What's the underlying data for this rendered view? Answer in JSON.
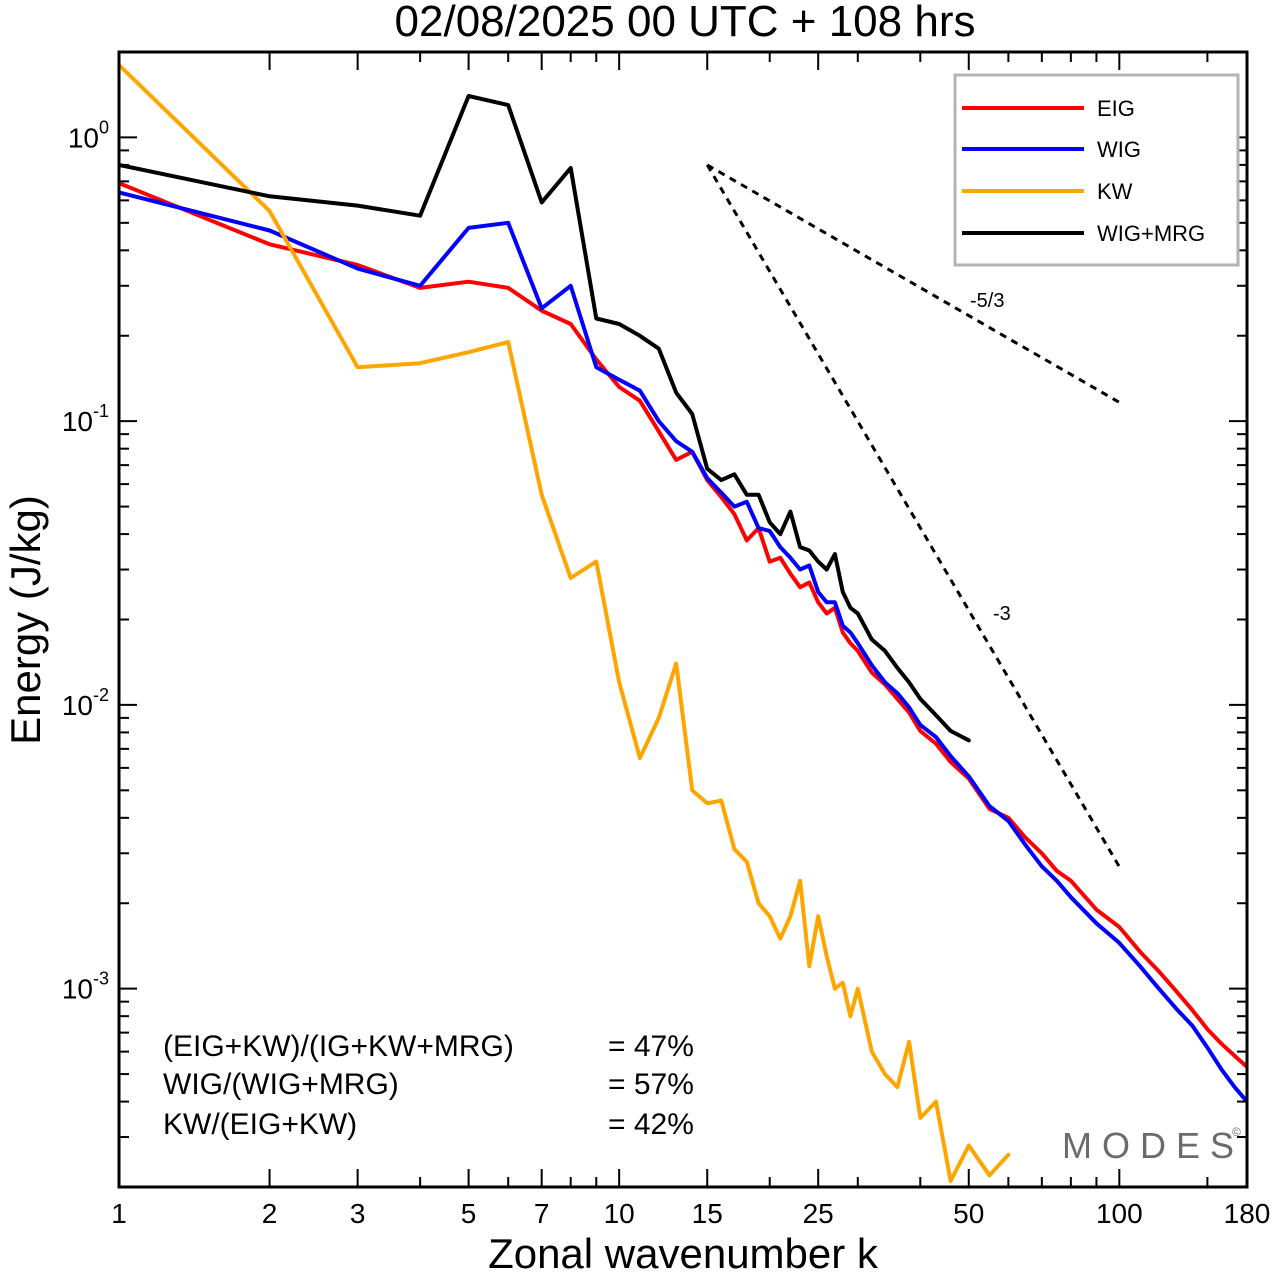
{
  "chart_data": {
    "type": "line",
    "title": "02/08/2025  00 UTC  + 108 hrs",
    "xlabel": "Zonal wavenumber k",
    "ylabel": "Energy (J/kg)",
    "xscale": "log",
    "yscale": "log",
    "xlim": [
      1,
      180
    ],
    "ylim": [
      0.0002,
      2.0
    ],
    "xticks": [
      1,
      2,
      3,
      5,
      7,
      10,
      15,
      25,
      50,
      100,
      180
    ],
    "yticks": [
      {
        "value": 0.001,
        "base": "10",
        "exp": "-3"
      },
      {
        "value": 0.01,
        "base": "10",
        "exp": "-2"
      },
      {
        "value": 0.1,
        "base": "10",
        "exp": "-1"
      },
      {
        "value": 1.0,
        "base": "10",
        "exp": "0"
      }
    ],
    "legend": {
      "position": "top-right"
    },
    "series": [
      {
        "name": "EIG",
        "color": "#ff0000",
        "x": [
          1,
          2,
          3,
          4,
          5,
          6,
          7,
          8,
          9,
          10,
          11,
          12,
          13,
          14,
          15,
          16,
          17,
          18,
          19,
          20,
          21,
          22,
          23,
          24,
          25,
          26,
          27,
          28,
          29,
          30,
          32,
          34,
          36,
          38,
          40,
          43,
          46,
          50,
          55,
          60,
          65,
          70,
          75,
          80,
          90,
          100,
          110,
          120,
          130,
          140,
          150,
          160,
          170,
          180
        ],
        "y": [
          0.69,
          0.42,
          0.355,
          0.295,
          0.31,
          0.295,
          0.245,
          0.22,
          0.165,
          0.132,
          0.118,
          0.092,
          0.073,
          0.078,
          0.062,
          0.054,
          0.047,
          0.038,
          0.042,
          0.032,
          0.033,
          0.029,
          0.026,
          0.027,
          0.023,
          0.021,
          0.022,
          0.018,
          0.0165,
          0.0155,
          0.013,
          0.0118,
          0.0105,
          0.0094,
          0.0081,
          0.0073,
          0.0063,
          0.0055,
          0.0043,
          0.004,
          0.0034,
          0.003,
          0.0026,
          0.0024,
          0.0019,
          0.00165,
          0.00135,
          0.00115,
          0.00098,
          0.00084,
          0.00072,
          0.00064,
          0.00058,
          0.00053
        ]
      },
      {
        "name": "WIG",
        "color": "#0000ff",
        "x": [
          1,
          2,
          3,
          4,
          5,
          6,
          7,
          8,
          9,
          10,
          11,
          12,
          13,
          14,
          15,
          16,
          17,
          18,
          19,
          20,
          21,
          22,
          23,
          24,
          25,
          26,
          27,
          28,
          29,
          30,
          32,
          34,
          36,
          38,
          40,
          43,
          46,
          50,
          55,
          60,
          65,
          70,
          75,
          80,
          90,
          100,
          110,
          120,
          130,
          140,
          150,
          160,
          170,
          180
        ],
        "y": [
          0.64,
          0.47,
          0.345,
          0.3,
          0.48,
          0.5,
          0.25,
          0.3,
          0.155,
          0.14,
          0.128,
          0.1,
          0.085,
          0.078,
          0.063,
          0.056,
          0.05,
          0.052,
          0.042,
          0.041,
          0.036,
          0.033,
          0.03,
          0.031,
          0.025,
          0.023,
          0.023,
          0.019,
          0.018,
          0.0165,
          0.0138,
          0.012,
          0.011,
          0.0098,
          0.0085,
          0.0077,
          0.0066,
          0.0056,
          0.0044,
          0.0039,
          0.0032,
          0.0027,
          0.0024,
          0.0021,
          0.0017,
          0.00145,
          0.0012,
          0.001,
          0.00085,
          0.00074,
          0.00062,
          0.00052,
          0.00045,
          0.0004
        ]
      },
      {
        "name": "KW",
        "color": "#ffa500",
        "x": [
          1,
          2,
          3,
          4,
          5,
          6,
          7,
          8,
          9,
          10,
          11,
          12,
          13,
          14,
          15,
          16,
          17,
          18,
          19,
          20,
          21,
          22,
          23,
          24,
          25,
          26,
          27,
          28,
          29,
          30,
          32,
          34,
          36,
          38,
          40,
          43,
          46,
          50,
          55,
          60
        ],
        "y": [
          1.8,
          0.55,
          0.155,
          0.16,
          0.175,
          0.19,
          0.055,
          0.028,
          0.032,
          0.012,
          0.0065,
          0.009,
          0.014,
          0.005,
          0.0045,
          0.0046,
          0.0031,
          0.0028,
          0.002,
          0.0018,
          0.0015,
          0.0018,
          0.0024,
          0.0012,
          0.0018,
          0.0013,
          0.001,
          0.00105,
          0.0008,
          0.001,
          0.0006,
          0.0005,
          0.00045,
          0.00065,
          0.00035,
          0.0004,
          0.00021,
          0.00028,
          0.00022,
          0.00026
        ]
      },
      {
        "name": "WIG+MRG",
        "color": "#000000",
        "x": [
          1,
          2,
          3,
          4,
          5,
          6,
          7,
          8,
          9,
          10,
          11,
          12,
          13,
          14,
          15,
          16,
          17,
          18,
          19,
          20,
          21,
          22,
          23,
          24,
          25,
          26,
          27,
          28,
          29,
          30,
          32,
          34,
          36,
          38,
          40,
          43,
          46,
          50
        ],
        "y": [
          0.8,
          0.62,
          0.575,
          0.53,
          1.4,
          1.3,
          0.59,
          0.78,
          0.23,
          0.22,
          0.2,
          0.18,
          0.126,
          0.106,
          0.068,
          0.062,
          0.065,
          0.055,
          0.055,
          0.044,
          0.04,
          0.048,
          0.036,
          0.035,
          0.032,
          0.03,
          0.034,
          0.025,
          0.022,
          0.021,
          0.017,
          0.0155,
          0.0135,
          0.012,
          0.0105,
          0.0092,
          0.0081,
          0.0075
        ]
      }
    ],
    "reference_lines": [
      {
        "label": "-5/3",
        "x": [
          15,
          100
        ],
        "y": [
          0.8,
          0.1165
        ]
      },
      {
        "label": "-3",
        "x": [
          15,
          100
        ],
        "y": [
          0.8,
          0.00269
        ]
      }
    ],
    "annotations": [
      {
        "label": "(EIG+KW)/(IG+KW+MRG)",
        "value": "= 47%"
      },
      {
        "label": "WIG/(WIG+MRG)",
        "value": "= 57%"
      },
      {
        "label": "KW/(EIG+KW)",
        "value": "= 42%"
      }
    ]
  },
  "watermark": {
    "text": "MODES",
    "mark": "©"
  }
}
